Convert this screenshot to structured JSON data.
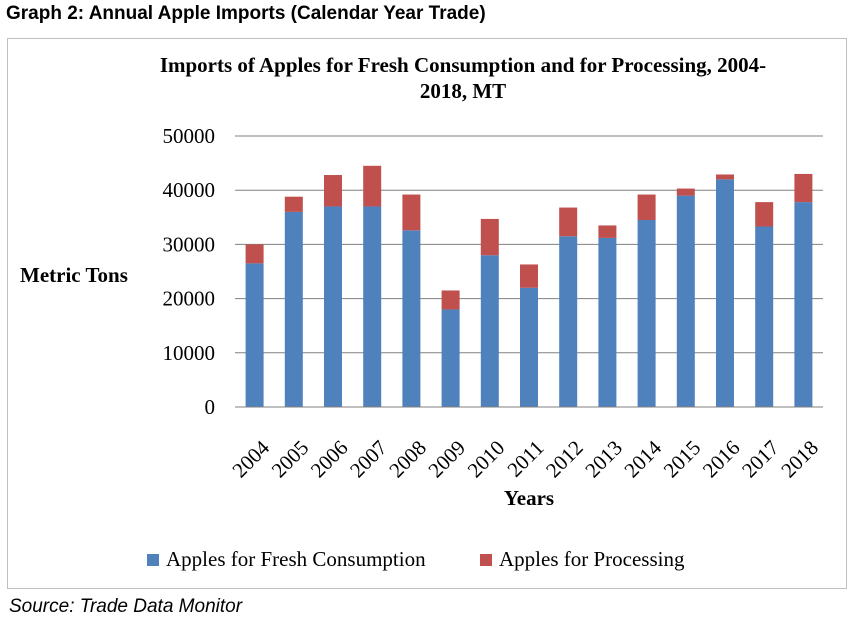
{
  "document": {
    "heading": "Graph 2: Annual Apple Imports (Calendar Year Trade)",
    "source": "Source: Trade Data Monitor"
  },
  "colors": {
    "fresh": "#4f81bd",
    "processing": "#c0504d",
    "grid": "#808080"
  },
  "chart_data": {
    "type": "bar",
    "stacked": true,
    "title_line1": "Imports of Apples for Fresh Consumption and for Processing, 2004-",
    "title_line2": "2018, MT",
    "xlabel": "Years",
    "ylabel": "Metric Tons",
    "ylim": [
      0,
      50000
    ],
    "yticks": [
      0,
      10000,
      20000,
      30000,
      40000,
      50000
    ],
    "grid": true,
    "legend_position": "bottom",
    "categories": [
      "2004",
      "2005",
      "2006",
      "2007",
      "2008",
      "2009",
      "2010",
      "2011",
      "2012",
      "2013",
      "2014",
      "2015",
      "2016",
      "2017",
      "2018"
    ],
    "series": [
      {
        "name": "Apples for Fresh Consumption",
        "values": [
          26500,
          36000,
          37000,
          37000,
          32600,
          18000,
          28000,
          22000,
          31500,
          31200,
          34500,
          39000,
          42000,
          33300,
          37800
        ]
      },
      {
        "name": "Apples for Processing",
        "values": [
          3500,
          2800,
          5800,
          7500,
          6600,
          3500,
          6700,
          4300,
          5300,
          2300,
          4700,
          1300,
          900,
          4500,
          5200
        ]
      }
    ]
  }
}
